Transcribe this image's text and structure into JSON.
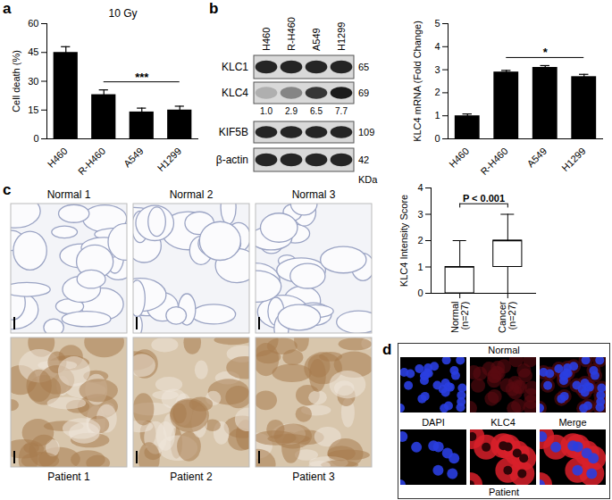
{
  "chart_data": [
    {
      "panel": "a",
      "type": "bar",
      "title": "10 Gy",
      "y_label": "Cell death (%)",
      "categories": [
        "H460",
        "R-H460",
        "A549",
        "H1299"
      ],
      "values": [
        45,
        23,
        14,
        15
      ],
      "errors": [
        3,
        2.5,
        2,
        2
      ],
      "color": "#000000",
      "ylim": [
        0,
        60
      ],
      "yticks": [
        0,
        15,
        30,
        45,
        60
      ],
      "significance": {
        "from": "R-H460",
        "to": "H1299",
        "label": "***"
      }
    },
    {
      "panel": "b",
      "type": "bar",
      "y_label": "KLC4 mRNA (Fold Change)",
      "categories": [
        "H460",
        "R-H460",
        "A549",
        "H1299"
      ],
      "values": [
        1.0,
        2.9,
        3.1,
        2.7
      ],
      "errors": [
        0.08,
        0.07,
        0.08,
        0.1
      ],
      "color": "#000000",
      "ylim": [
        0,
        5
      ],
      "yticks": [
        0,
        1,
        2,
        3,
        4,
        5
      ],
      "significance": {
        "from": "R-H460",
        "to": "H1299",
        "label": "*"
      }
    },
    {
      "panel": "c",
      "type": "box",
      "y_label": "KLC4 Intensity Score",
      "categories": [
        "Normal\n(n=27)",
        "Cancer\n(n=27)"
      ],
      "stats": [
        {
          "min": 0,
          "q1": 0,
          "median": 1,
          "q3": 1,
          "max": 2
        },
        {
          "min": 0,
          "q1": 1,
          "median": 2,
          "q3": 2,
          "max": 3
        }
      ],
      "color": "#ffffff",
      "ylim": [
        0,
        4
      ],
      "yticks": [
        0,
        1,
        2,
        3,
        4
      ],
      "significance": {
        "from": "Normal\n(n=27)",
        "to": "Cancer\n(n=27)",
        "label": "P < 0.001"
      }
    }
  ],
  "blot": {
    "panel": "b",
    "lanes": [
      "H460",
      "R-H460",
      "A549",
      "H1299"
    ],
    "size_unit": "KDa",
    "rows": [
      {
        "name": "KLC1",
        "size": 65
      },
      {
        "name": "KLC4",
        "size": 69,
        "quantification": {
          "values": [
            1.0,
            2.9,
            6.5,
            7.7
          ],
          "value_labels": [
            "1.0",
            "2.9",
            "6.5",
            "7.7"
          ]
        }
      },
      {
        "name": "KIF5B",
        "size": 109
      },
      {
        "name": "β-actin",
        "size": 42
      }
    ]
  },
  "ihc": {
    "panel": "c",
    "top_labels": [
      "Normal 1",
      "Normal 2",
      "Normal 3"
    ],
    "bottom_labels": [
      "Patient 1",
      "Patient 2",
      "Patient 3"
    ]
  },
  "fluorescence": {
    "panel": "d",
    "top_label": "Normal",
    "channel_labels": [
      "DAPI",
      "KLC4",
      "Merge"
    ],
    "bottom_label": "Patient"
  }
}
